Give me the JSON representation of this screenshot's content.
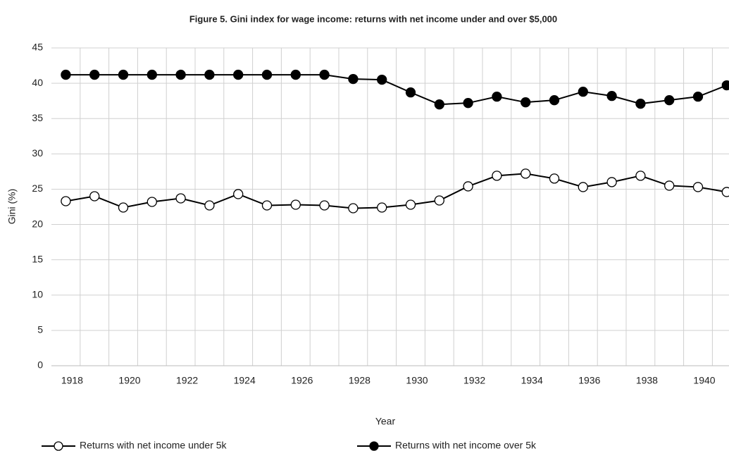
{
  "chart_data": {
    "type": "line",
    "title": "Figure 5. Gini index for wage income: returns with net income under and over $5,000",
    "x_label": "Year",
    "y_label": "Gini (%)",
    "categories": [
      "1918",
      null,
      "1920",
      null,
      "1922",
      null,
      "1924",
      null,
      "1926",
      null,
      "1928",
      null,
      "1930",
      null,
      "1932",
      null,
      "1934",
      null,
      "1936",
      null,
      "1938",
      null,
      "1940",
      null
    ],
    "series": [
      {
        "name": "Returns with net income under 5k",
        "color": "#000000",
        "marker": "open",
        "values": [
          23.3,
          24.0,
          22.4,
          23.2,
          23.7,
          22.7,
          24.3,
          22.7,
          22.8,
          22.7,
          22.3,
          22.4,
          22.8,
          23.4,
          25.4,
          26.9,
          27.2,
          26.5,
          25.3,
          26.0,
          26.9,
          25.5,
          25.3,
          24.6
        ]
      },
      {
        "name": "Returns with net income over 5k",
        "color": "#000000",
        "marker": "filled",
        "values": [
          41.2,
          41.2,
          41.2,
          41.2,
          41.2,
          41.2,
          41.2,
          41.2,
          41.2,
          41.2,
          40.6,
          40.5,
          38.7,
          37.0,
          37.2,
          38.1,
          37.3,
          37.6,
          38.8,
          38.2,
          37.1,
          37.6,
          38.1,
          39.7
        ]
      }
    ],
    "ylim": [
      0,
      45
    ],
    "yticks": [
      0,
      5,
      10,
      15,
      20,
      25,
      30,
      35,
      40,
      45
    ],
    "grid": true,
    "legend": "bottom"
  }
}
